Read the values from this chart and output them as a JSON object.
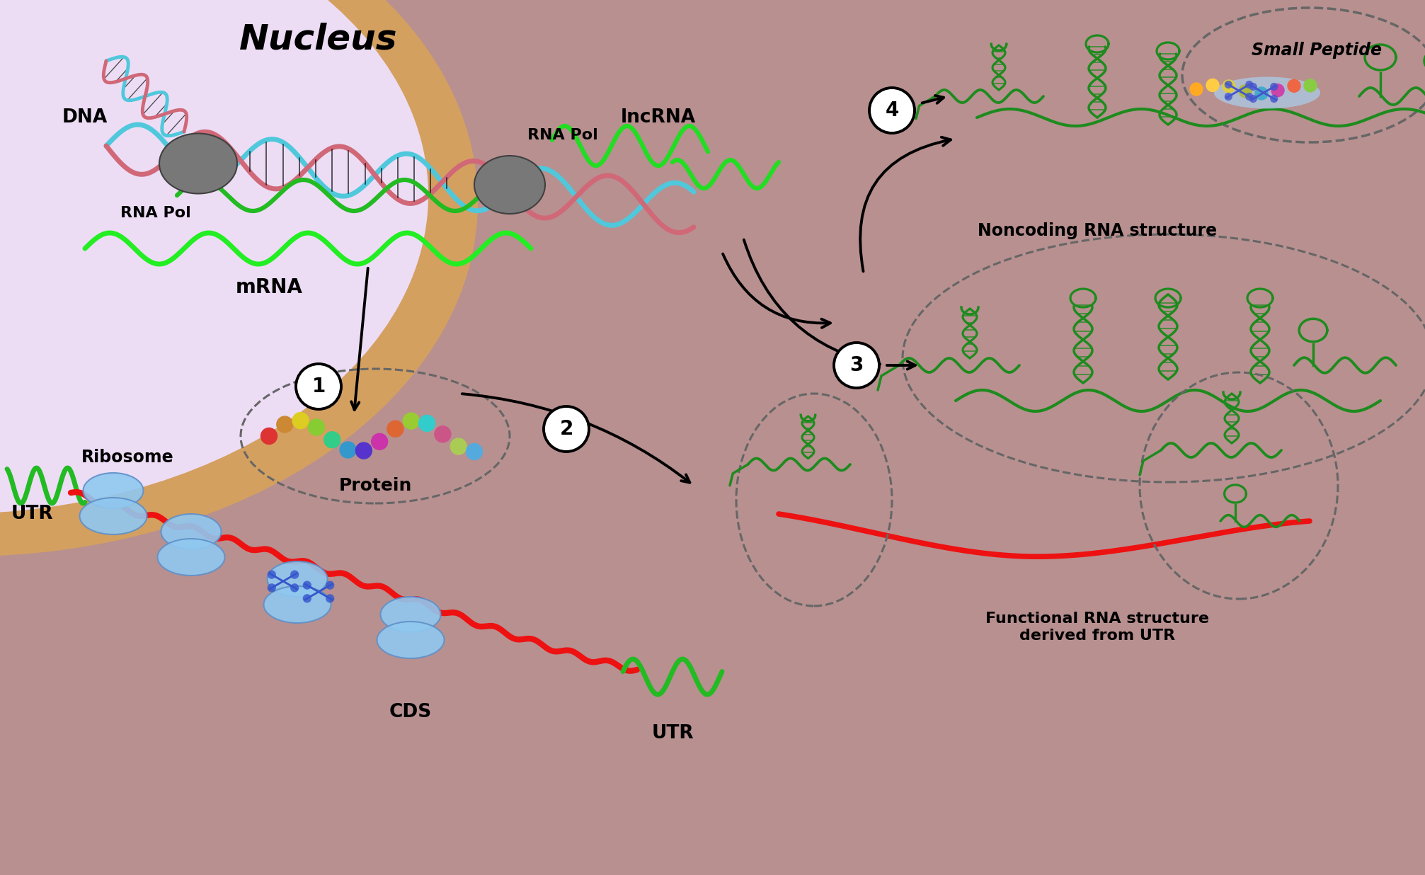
{
  "bg_color": "#b89090",
  "nucleus_fill": "#ecddf5",
  "nucleus_border": "#d4a060",
  "dna_color1": "#50c8dc",
  "dna_color2": "#d06878",
  "mrna_color": "#22bb22",
  "bright_green": "#22dd22",
  "rna_pol_color": "#787878",
  "ribosome_color": "#90c8f0",
  "red_strand": "#ee1111",
  "green_rna": "#1d8b1d",
  "dashed_gray": "#666666",
  "nucleus_label": "Nucleus",
  "DNA_label": "DNA",
  "RNA_Pol_label": "RNA Pol",
  "lncRNA_label": "lncRNA",
  "mRNA_label": "mRNA",
  "Ribosome_label": "Ribosome",
  "UTR_label": "UTR",
  "CDS_label": "CDS",
  "Protein_label": "Protein",
  "small_peptide_label": "Small Peptide",
  "noncoding_rna_label": "Noncoding RNA structure",
  "functional_rna_label": "Functional RNA structure\nderived from UTR"
}
